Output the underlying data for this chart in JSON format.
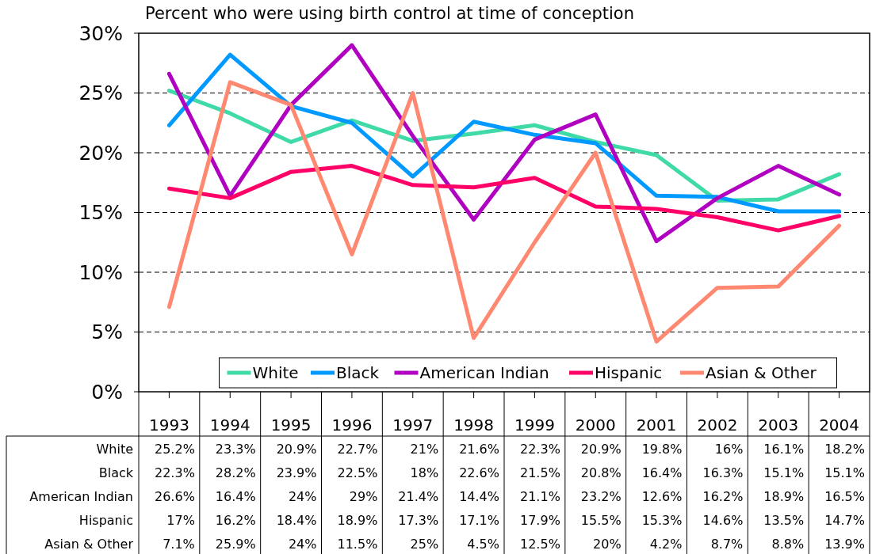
{
  "chart_data": {
    "type": "line",
    "title": "Percent who were using birth control at time of conception",
    "categories": [
      "1993",
      "1994",
      "1995",
      "1996",
      "1997",
      "1998",
      "1999",
      "2000",
      "2001",
      "2002",
      "2003",
      "2004"
    ],
    "series": [
      {
        "name": "White",
        "color": "#40d9a8",
        "values": [
          25.2,
          23.3,
          20.9,
          22.7,
          21,
          21.6,
          22.3,
          20.9,
          19.8,
          16,
          16.1,
          18.2
        ],
        "value_labels": [
          "25.2%",
          "23.3%",
          "20.9%",
          "22.7%",
          "21%",
          "21.6%",
          "22.3%",
          "20.9%",
          "19.8%",
          "16%",
          "16.1%",
          "18.2%"
        ]
      },
      {
        "name": "Black",
        "color": "#0099ff",
        "values": [
          22.3,
          28.2,
          23.9,
          22.5,
          18,
          22.6,
          21.5,
          20.8,
          16.4,
          16.3,
          15.1,
          15.1
        ],
        "value_labels": [
          "22.3%",
          "28.2%",
          "23.9%",
          "22.5%",
          "18%",
          "22.6%",
          "21.5%",
          "20.8%",
          "16.4%",
          "16.3%",
          "15.1%",
          "15.1%"
        ]
      },
      {
        "name": "American Indian",
        "color": "#b000c0",
        "values": [
          26.6,
          16.4,
          24,
          29,
          21.4,
          14.4,
          21.1,
          23.2,
          12.6,
          16.2,
          18.9,
          16.5
        ],
        "value_labels": [
          "26.6%",
          "16.4%",
          "24%",
          "29%",
          "21.4%",
          "14.4%",
          "21.1%",
          "23.2%",
          "12.6%",
          "16.2%",
          "18.9%",
          "16.5%"
        ]
      },
      {
        "name": "Hispanic",
        "color": "#ff0066",
        "values": [
          17,
          16.2,
          18.4,
          18.9,
          17.3,
          17.1,
          17.9,
          15.5,
          15.3,
          14.6,
          13.5,
          14.7
        ],
        "value_labels": [
          "17%",
          "16.2%",
          "18.4%",
          "18.9%",
          "17.3%",
          "17.1%",
          "17.9%",
          "15.5%",
          "15.3%",
          "14.6%",
          "13.5%",
          "14.7%"
        ]
      },
      {
        "name": "Asian & Other",
        "color": "#ff8870",
        "values": [
          7.1,
          25.9,
          24,
          11.5,
          25,
          4.5,
          12.5,
          20,
          4.2,
          8.7,
          8.8,
          13.9
        ],
        "value_labels": [
          "7.1%",
          "25.9%",
          "24%",
          "11.5%",
          "25%",
          "4.5%",
          "12.5%",
          "20%",
          "4.2%",
          "8.7%",
          "8.8%",
          "13.9%"
        ]
      }
    ],
    "ylim": [
      0,
      30
    ],
    "yticks": [
      {
        "value": 0,
        "label": "0%"
      },
      {
        "value": 5,
        "label": "5%"
      },
      {
        "value": 10,
        "label": "10%"
      },
      {
        "value": 15,
        "label": "15%"
      },
      {
        "value": 20,
        "label": "20%"
      },
      {
        "value": 25,
        "label": "25%"
      },
      {
        "value": 30,
        "label": "30%"
      }
    ],
    "grid": "y",
    "legend": "bottom",
    "marker": "none",
    "line_style": "solid"
  }
}
